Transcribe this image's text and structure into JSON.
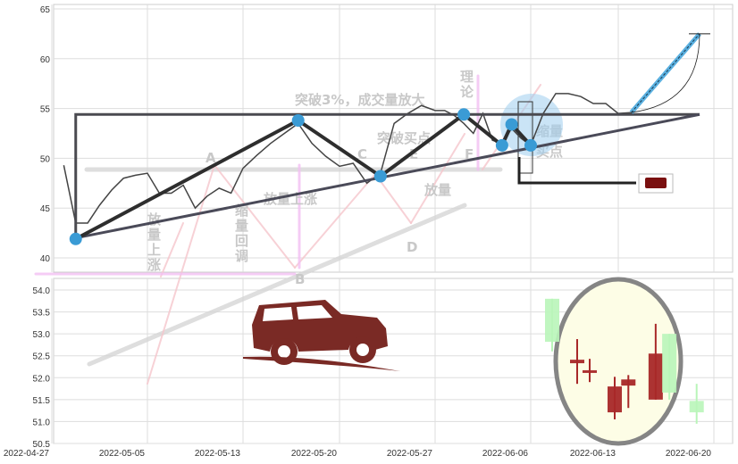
{
  "chart_data": [
    {
      "type": "line",
      "panel": "price",
      "ylim": [
        40,
        65
      ],
      "yticks": [
        40,
        45,
        50,
        55,
        60,
        65
      ],
      "grid": true,
      "series": [
        {
          "values": [
            [
              "2022-04-28",
              49.3
            ],
            [
              "2022-04-29",
              43.5
            ],
            [
              "2022-04-30",
              43.5
            ],
            [
              "2022-05-01",
              45.3
            ],
            [
              "2022-05-02",
              46.8
            ],
            [
              "2022-05-03",
              48.0
            ],
            [
              "2022-05-04",
              48.3
            ],
            [
              "2022-05-05",
              48.5
            ],
            [
              "2022-05-06",
              46.5
            ],
            [
              "2022-05-07",
              46.5
            ],
            [
              "2022-05-08",
              47.3
            ],
            [
              "2022-05-09",
              45.0
            ],
            [
              "2022-05-10",
              46.2
            ],
            [
              "2022-05-11",
              47.0
            ],
            [
              "2022-05-12",
              46.5
            ],
            [
              "2022-05-13",
              49.0
            ],
            [
              "2022-05-14",
              50.3
            ],
            [
              "2022-05-15",
              51.5
            ],
            [
              "2022-05-16",
              52.5
            ],
            [
              "2022-05-17",
              53.5
            ],
            [
              "2022-05-18",
              51.5
            ],
            [
              "2022-05-19",
              50.2
            ],
            [
              "2022-05-20",
              49.2
            ],
            [
              "2022-05-21",
              49.5
            ],
            [
              "2022-05-22",
              47.5
            ],
            [
              "2022-05-23",
              48.5
            ],
            [
              "2022-05-24",
              53.5
            ],
            [
              "2022-05-25",
              54.5
            ],
            [
              "2022-05-26",
              55.3
            ],
            [
              "2022-05-27",
              54.8
            ],
            [
              "2022-05-28",
              54.8
            ],
            [
              "2022-05-29",
              54.3
            ],
            [
              "2022-05-30",
              53.5
            ],
            [
              "2022-05-31",
              52.5
            ],
            [
              "2022-06-01",
              54.5
            ],
            [
              "2022-06-02",
              51.8
            ],
            [
              "2022-06-03",
              51.5
            ],
            [
              "2022-06-04",
              53.0
            ],
            [
              "2022-06-05",
              52.0
            ],
            [
              "2022-06-06",
              51.3
            ],
            [
              "2022-06-07",
              54.5
            ],
            [
              "2022-06-08",
              56.5
            ],
            [
              "2022-06-09",
              56.5
            ],
            [
              "2022-06-10",
              56.2
            ],
            [
              "2022-06-11",
              55.5
            ],
            [
              "2022-06-12",
              55.5
            ],
            [
              "2022-06-13",
              54.5
            ],
            [
              "2022-06-14",
              54.6
            ]
          ]
        }
      ],
      "pivots": [
        [
          "2022-04-29",
          41.9
        ],
        [
          "2022-05-17",
          53.8
        ],
        [
          "2022-05-23",
          48.2
        ],
        [
          "2022-05-30",
          54.4
        ],
        [
          "2022-06-03",
          51.3
        ],
        [
          "2022-06-04",
          53.4
        ],
        [
          "2022-06-06",
          51.3
        ]
      ],
      "resistance": [
        [
          "2022-04-29",
          54.4
        ],
        [
          "2022-06-20",
          54.4
        ]
      ],
      "support": [
        [
          "2022-04-29",
          42.0
        ],
        [
          "2022-06-20",
          54.4
        ]
      ],
      "target": [
        [
          "2022-06-15",
          54.6
        ],
        [
          "2022-06-20",
          62.5
        ]
      ],
      "annotations": [
        "突破3%，成交量放大",
        "突破买点",
        "放量上涨",
        "缩量回调",
        "放量上涨",
        "理论",
        "缩量",
        "放量",
        "买点",
        "A",
        "B",
        "C",
        "D",
        "E",
        "F"
      ],
      "colors": {
        "line": "#444444",
        "pivot": "#3a9bd5",
        "target": "#5ab0e0",
        "watermark_arrow": "#f6b8c0"
      }
    },
    {
      "type": "candlestick",
      "panel": "kline",
      "ylim": [
        50.5,
        54.0
      ],
      "yticks": [
        50.5,
        51.0,
        51.5,
        52.0,
        52.5,
        53.0,
        53.5,
        54.0
      ],
      "xticks": [
        "2022-04-27",
        "2022-05-05",
        "2022-05-13",
        "2022-05-20",
        "2022-05-27",
        "2022-06-06",
        "2022-06-13",
        "2022-06-20"
      ],
      "grid": true,
      "candles": [
        {
          "date": "2022-06-08",
          "open": 53.8,
          "close": 52.82,
          "high": 53.8,
          "low": 52.6,
          "color": "#b9f5b9"
        },
        {
          "date": "2022-06-10",
          "open": 52.33,
          "close": 52.41,
          "high": 52.88,
          "low": 51.86,
          "color": "#a82828"
        },
        {
          "date": "2022-06-11",
          "open": 52.13,
          "close": 52.17,
          "high": 52.43,
          "low": 51.9,
          "color": "#a82828"
        },
        {
          "date": "2022-06-13",
          "open": 51.21,
          "close": 51.8,
          "high": 52.02,
          "low": 51.05,
          "color": "#a82828"
        },
        {
          "date": "2022-06-14",
          "open": 51.82,
          "close": 51.96,
          "high": 52.06,
          "low": 51.31,
          "color": "#a82828"
        },
        {
          "date": "2022-06-16",
          "open": 51.5,
          "close": 52.55,
          "high": 53.23,
          "low": 51.5,
          "color": "#a82828"
        },
        {
          "date": "2022-06-17",
          "open": 53.0,
          "close": 51.66,
          "high": 53.0,
          "low": 51.5,
          "color": "#b9f5b9"
        },
        {
          "date": "2022-06-19",
          "open": 51.47,
          "close": 51.21,
          "high": 51.86,
          "low": 50.95,
          "color": "#b9f5b9"
        }
      ],
      "highlight_color": "#fdfde6"
    }
  ]
}
